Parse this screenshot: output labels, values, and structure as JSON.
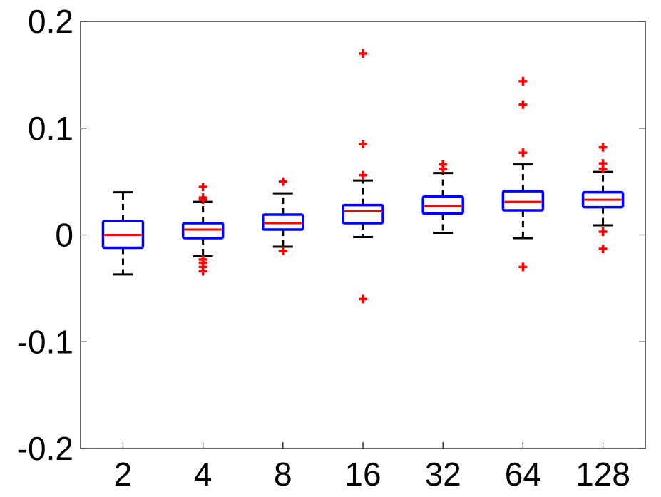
{
  "chart_data": {
    "type": "box",
    "title": "",
    "xlabel": "",
    "ylabel": "",
    "ylim": [
      -0.2,
      0.2
    ],
    "y_ticks": [
      -0.2,
      -0.1,
      0,
      0.1,
      0.2
    ],
    "y_tick_labels": [
      "-0.2",
      "-0.1",
      "0",
      "0.1",
      "0.2"
    ],
    "grid": false,
    "colors": {
      "box": "#0000ff",
      "median": "#ff0000",
      "whisker": "#000000",
      "outlier": "#ff0000",
      "axes": "#000000"
    },
    "categories": [
      "2",
      "4",
      "8",
      "16",
      "32",
      "64",
      "128"
    ],
    "boxes": [
      {
        "category": "2",
        "whisker_low": -0.037,
        "q1": -0.012,
        "median": 0.0,
        "q3": 0.013,
        "whisker_high": 0.04,
        "outliers": []
      },
      {
        "category": "4",
        "whisker_low": -0.02,
        "q1": -0.003,
        "median": 0.005,
        "q3": 0.011,
        "whisker_high": 0.031,
        "outliers": [
          0.045,
          0.035,
          0.033,
          -0.023,
          -0.026,
          -0.03,
          -0.034
        ]
      },
      {
        "category": "8",
        "whisker_low": -0.011,
        "q1": 0.005,
        "median": 0.011,
        "q3": 0.019,
        "whisker_high": 0.039,
        "outliers": [
          0.05,
          -0.015
        ]
      },
      {
        "category": "16",
        "whisker_low": -0.002,
        "q1": 0.011,
        "median": 0.022,
        "q3": 0.028,
        "whisker_high": 0.051,
        "outliers": [
          0.17,
          0.085,
          0.056,
          -0.06
        ]
      },
      {
        "category": "32",
        "whisker_low": 0.002,
        "q1": 0.02,
        "median": 0.027,
        "q3": 0.036,
        "whisker_high": 0.058,
        "outliers": [
          0.066,
          0.062
        ]
      },
      {
        "category": "64",
        "whisker_low": -0.003,
        "q1": 0.023,
        "median": 0.031,
        "q3": 0.041,
        "whisker_high": 0.066,
        "outliers": [
          0.144,
          0.122,
          0.077,
          -0.03
        ]
      },
      {
        "category": "128",
        "whisker_low": 0.009,
        "q1": 0.026,
        "median": 0.033,
        "q3": 0.04,
        "whisker_high": 0.059,
        "outliers": [
          0.082,
          0.067,
          0.062,
          0.003,
          -0.013
        ]
      }
    ]
  }
}
